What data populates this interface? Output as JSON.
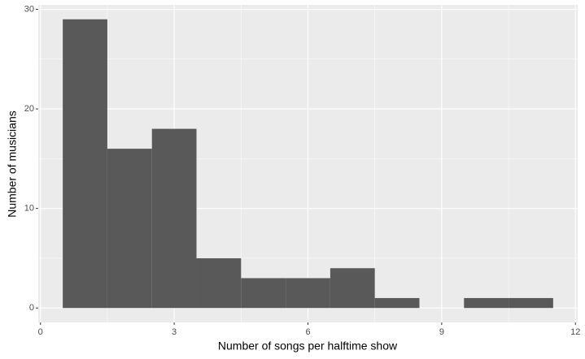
{
  "chart_data": {
    "type": "histogram",
    "xlabel": "Number of songs per halftime show",
    "ylabel": "Number of musicians",
    "bins": [
      0.5,
      1.5,
      2.5,
      3.5,
      4.5,
      5.5,
      6.5,
      7.5,
      8.5,
      9.5,
      10.5,
      11.5
    ],
    "values": [
      29,
      16,
      18,
      5,
      3,
      3,
      4,
      1,
      0,
      1,
      1
    ],
    "color": "#595959",
    "xlim": [
      -0.05,
      12.05
    ],
    "ylim": [
      -1.45,
      30.45
    ],
    "xticks": [
      0,
      3,
      6,
      9,
      12
    ],
    "yticks": [
      0,
      10,
      20,
      30
    ],
    "minor_xticks": [
      1.5,
      4.5,
      7.5,
      10.5
    ],
    "minor_yticks": [
      5,
      15,
      25
    ],
    "grid": true
  }
}
